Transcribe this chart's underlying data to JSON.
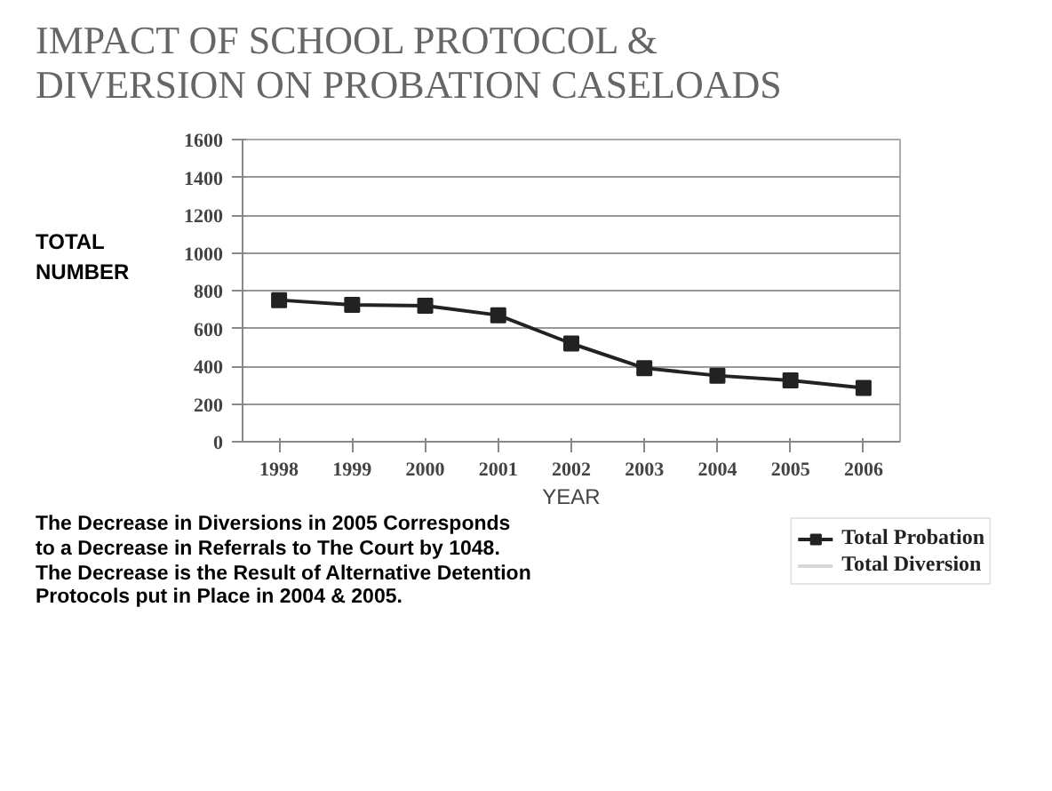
{
  "chart_data": {
    "type": "line",
    "title": "IMPACT OF SCHOOL PROTOCOL & DIVERSION ON PROBATION CASELOADS",
    "ylabel": "TOTAL NUMBER",
    "xlabel": "YEAR",
    "categories": [
      "1998",
      "1999",
      "2000",
      "2001",
      "2002",
      "2003",
      "2004",
      "2005",
      "2006"
    ],
    "series": [
      {
        "name": "Total Probation",
        "color": "#222222",
        "marker": "square",
        "values": [
          750,
          725,
          720,
          670,
          520,
          390,
          350,
          325,
          285
        ]
      },
      {
        "name": "Total Diversion",
        "color": "#d8d8d8",
        "marker": "none",
        "values": [
          null,
          null,
          null,
          null,
          null,
          null,
          null,
          null,
          null
        ]
      }
    ],
    "ylim": [
      0,
      1600
    ],
    "yticks": [
      0,
      200,
      400,
      600,
      800,
      1000,
      1200,
      1400,
      1600
    ],
    "grid": "y",
    "legend": "bottom right",
    "annotations": [
      "The Decrease in Diversions in 2005 Corresponds to a Decrease in Referrals to The Court by 1048. The Decrease is the Result of Alternative Detention Protocols put in Place in 2004 & 2005."
    ]
  }
}
